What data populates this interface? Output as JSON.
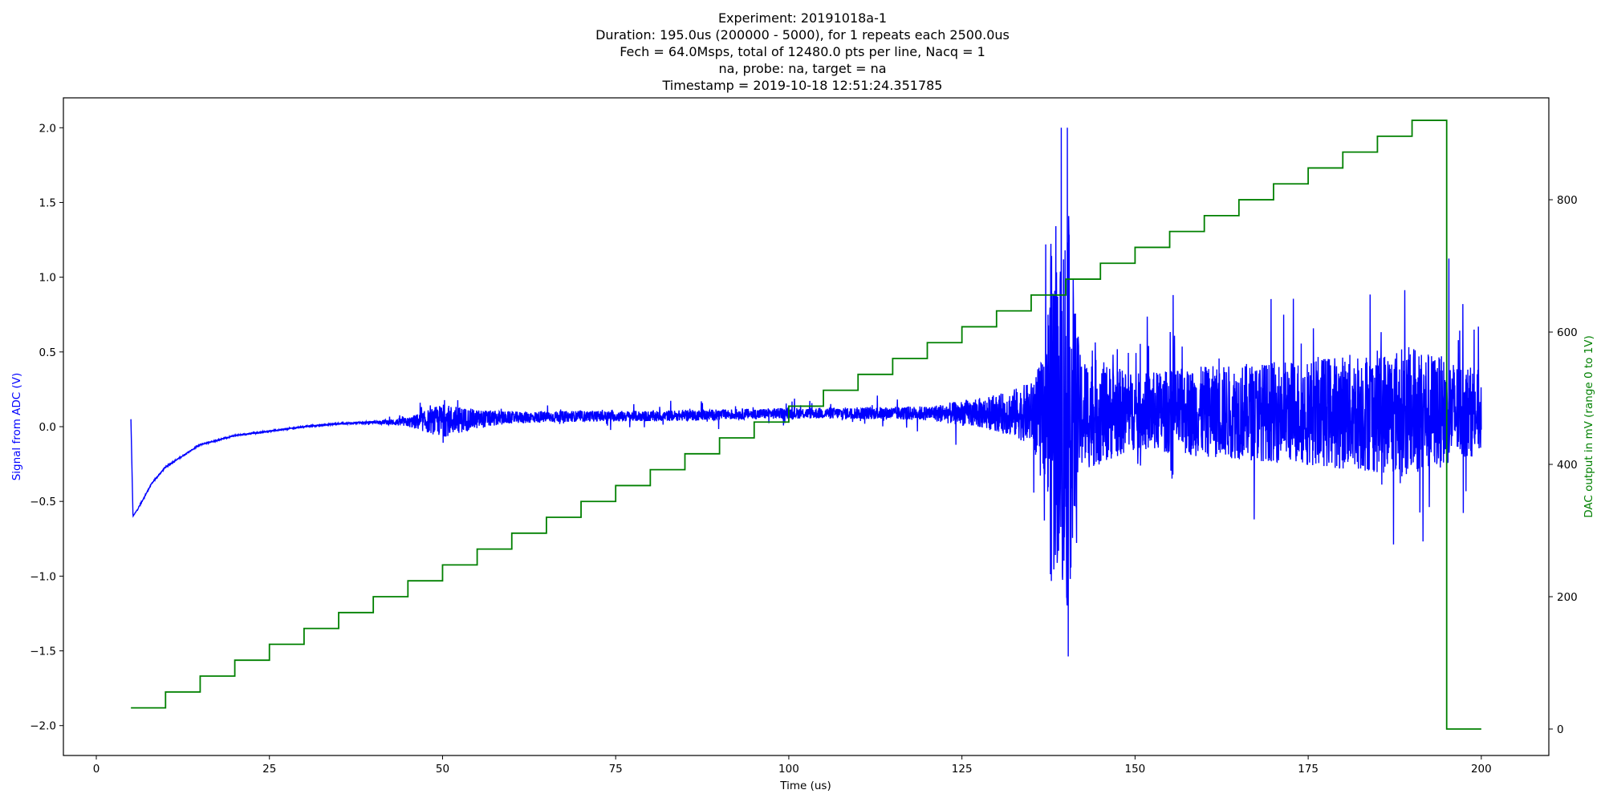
{
  "chart_data": {
    "type": "line",
    "title_lines": [
      "Experiment: 20191018a-1",
      "Duration: 195.0us (200000 - 5000), for 1 repeats each 2500.0us",
      "Fech = 64.0Msps, total of 12480.0 pts per line, Nacq = 1",
      "na, probe: na, target = na",
      "Timestamp = 2019-10-18 12:51:24.351785"
    ],
    "xlabel": "Time (us)",
    "ylabel_left": "Signal from ADC (V)",
    "ylabel_right": "DAC output in mV (range 0 to 1V)",
    "xlim": [
      -4.75,
      209.75
    ],
    "ylim_left": [
      -2.2,
      2.2
    ],
    "ylim_right": [
      -40,
      954
    ],
    "x_ticks": [
      0,
      25,
      50,
      75,
      100,
      125,
      150,
      175,
      200
    ],
    "y_left_ticks": [
      -2.0,
      -1.5,
      -1.0,
      -0.5,
      0.0,
      0.5,
      1.0,
      1.5,
      2.0
    ],
    "y_left_tick_labels": [
      "−2.0",
      "−1.5",
      "−1.0",
      "−0.5",
      "0.0",
      "0.5",
      "1.0",
      "1.5",
      "2.0"
    ],
    "y_right_ticks": [
      0,
      200,
      400,
      600,
      800
    ],
    "y_right_tick_labels": [
      "0",
      "200",
      "400",
      "600",
      "800"
    ],
    "grid": false,
    "legend": "none",
    "series": [
      {
        "axis": "left",
        "color": "#0000ff",
        "style": "noisy",
        "x_range": [
          5,
          200
        ],
        "samples": 12480,
        "description_points": {
          "x": [
            5,
            5.3,
            6,
            8,
            10,
            15,
            20,
            25,
            30,
            35,
            40,
            45,
            50,
            55,
            60,
            70,
            80,
            90,
            100,
            110,
            120,
            130,
            135,
            137,
            138,
            139,
            140,
            141,
            142,
            150,
            160,
            170,
            180,
            190,
            195,
            200
          ],
          "mean": [
            0.05,
            -0.6,
            -0.55,
            -0.38,
            -0.27,
            -0.12,
            -0.06,
            -0.03,
            0.0,
            0.02,
            0.03,
            0.03,
            0.04,
            0.05,
            0.06,
            0.07,
            0.07,
            0.08,
            0.09,
            0.09,
            0.09,
            0.09,
            0.09,
            0.09,
            0.09,
            0.09,
            0.09,
            0.09,
            0.09,
            0.1,
            0.1,
            0.1,
            0.1,
            0.1,
            0.1,
            0.1
          ],
          "amplitude": [
            0,
            0,
            0.005,
            0.005,
            0.005,
            0.005,
            0.005,
            0.005,
            0.005,
            0.005,
            0.01,
            0.04,
            0.14,
            0.08,
            0.05,
            0.045,
            0.045,
            0.045,
            0.045,
            0.05,
            0.06,
            0.15,
            0.26,
            0.5,
            1.6,
            1.2,
            1.8,
            1.2,
            0.5,
            0.32,
            0.38,
            0.42,
            0.48,
            0.55,
            0.45,
            0.35
          ]
        }
      },
      {
        "axis": "right",
        "color": "#008000",
        "style": "step",
        "x": [
          5,
          10,
          15,
          20,
          25,
          30,
          35,
          40,
          45,
          50,
          55,
          60,
          65,
          70,
          75,
          80,
          85,
          90,
          95,
          100,
          105,
          110,
          115,
          120,
          125,
          130,
          135,
          140,
          145,
          150,
          155,
          160,
          165,
          170,
          175,
          180,
          185,
          190,
          195,
          200
        ],
        "y": [
          32,
          56,
          80,
          104,
          128,
          152,
          176,
          200,
          224,
          248,
          272,
          296,
          320,
          344,
          368,
          392,
          416,
          440,
          464,
          488,
          512,
          536,
          560,
          584,
          608,
          632,
          656,
          680,
          704,
          728,
          752,
          776,
          800,
          824,
          848,
          872,
          896,
          920,
          0,
          0
        ]
      }
    ]
  }
}
